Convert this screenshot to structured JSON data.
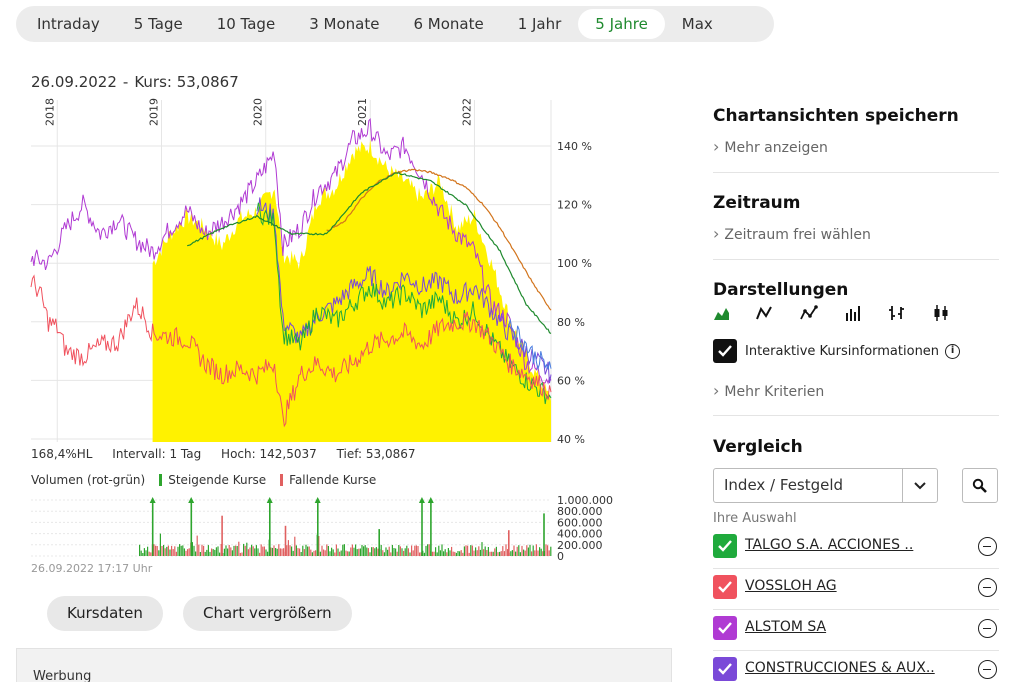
{
  "range_tabs": [
    {
      "label": "Intraday",
      "active": false
    },
    {
      "label": "5 Tage",
      "active": false
    },
    {
      "label": "10 Tage",
      "active": false
    },
    {
      "label": "3 Monate",
      "active": false
    },
    {
      "label": "6 Monate",
      "active": false
    },
    {
      "label": "1 Jahr",
      "active": false
    },
    {
      "label": "5 Jahre",
      "active": true
    },
    {
      "label": "Max",
      "active": false
    }
  ],
  "chart_header": {
    "date": "26.09.2022",
    "separator": "-",
    "price": "Kurs: 53,0867"
  },
  "chart_info": {
    "hl": "168,4%HL",
    "interval": "Intervall: 1 Tag",
    "high": "Hoch: 142,5037",
    "low": "Tief: 53,0867"
  },
  "volume_legend": {
    "title": "Volumen (rot-grün)",
    "up": "Steigende Kurse",
    "down": "Fallende Kurse"
  },
  "timestamp": "26.09.2022 17:17 Uhr",
  "buttons": {
    "kursdaten": "Kursdaten",
    "enlarge": "Chart vergrößern"
  },
  "ad_label": "Werbung",
  "sidebar": {
    "save_views": {
      "title": "Chartansichten speichern",
      "link": "Mehr anzeigen"
    },
    "period": {
      "title": "Zeitraum",
      "link": "Zeitraum frei wählen"
    },
    "display": {
      "title": "Darstellungen",
      "icons": [
        "area-chart-icon",
        "line-chart-icon",
        "dotted-line-chart-icon",
        "bar-chart-icon",
        "ohlc-chart-icon",
        "candlestick-chart-icon"
      ],
      "interactive_label": "Interaktive Kursinformationen",
      "interactive_checked": true,
      "more": "Mehr Kriterien"
    },
    "compare": {
      "title": "Vergleich",
      "select_value": "Index / Festgeld",
      "selection_caption": "Ihre Auswahl",
      "items": [
        {
          "name": "TALGO S.A. ACCIONES ..",
          "color": "#1faa3c"
        },
        {
          "name": "VOSSLOH AG",
          "color": "#f0525e"
        },
        {
          "name": "ALSTOM SA",
          "color": "#b03ad3"
        },
        {
          "name": "CONSTRUCCIONES & AUX..",
          "color": "#7a49d8"
        }
      ]
    }
  },
  "chart_data": {
    "type": "line",
    "x_ticks": [
      "2018",
      "2019",
      "2020",
      "2021",
      "2022"
    ],
    "y_ticks": [
      40,
      60,
      80,
      100,
      120,
      140
    ],
    "y_unit": "%",
    "ylim": [
      40,
      150
    ],
    "fill_color": "#fff200",
    "series": [
      {
        "color": "#fff200",
        "values": [
          {
            "x": "2018-12-01",
            "y": 100
          },
          {
            "x": "2019-02-01",
            "y": 110
          },
          {
            "x": "2019-04-01",
            "y": 116
          },
          {
            "x": "2019-06-01",
            "y": 112
          },
          {
            "x": "2019-08-01",
            "y": 106
          },
          {
            "x": "2019-10-01",
            "y": 115
          },
          {
            "x": "2019-12-01",
            "y": 118
          },
          {
            "x": "2020-02-01",
            "y": 126
          },
          {
            "x": "2020-03-01",
            "y": 103
          },
          {
            "x": "2020-05-01",
            "y": 100
          },
          {
            "x": "2020-07-01",
            "y": 122
          },
          {
            "x": "2020-09-01",
            "y": 126
          },
          {
            "x": "2020-11-01",
            "y": 138
          },
          {
            "x": "2021-01-01",
            "y": 140
          },
          {
            "x": "2021-03-01",
            "y": 132
          },
          {
            "x": "2021-05-01",
            "y": 128
          },
          {
            "x": "2021-07-01",
            "y": 122
          },
          {
            "x": "2021-09-01",
            "y": 128
          },
          {
            "x": "2021-11-01",
            "y": 112
          },
          {
            "x": "2022-01-01",
            "y": 116
          },
          {
            "x": "2022-03-01",
            "y": 100
          },
          {
            "x": "2022-05-01",
            "y": 82
          },
          {
            "x": "2022-07-01",
            "y": 68
          },
          {
            "x": "2022-09-26",
            "y": 53
          }
        ]
      },
      {
        "color": "#b03ad3",
        "values": [
          {
            "x": "2017-10-01",
            "y": 102
          },
          {
            "x": "2017-12-01",
            "y": 100
          },
          {
            "x": "2018-02-01",
            "y": 112
          },
          {
            "x": "2018-04-01",
            "y": 120
          },
          {
            "x": "2018-06-01",
            "y": 110
          },
          {
            "x": "2018-08-01",
            "y": 115
          },
          {
            "x": "2018-10-01",
            "y": 108
          },
          {
            "x": "2018-12-01",
            "y": 104
          },
          {
            "x": "2019-02-01",
            "y": 112
          },
          {
            "x": "2019-04-01",
            "y": 118
          },
          {
            "x": "2019-06-01",
            "y": 110
          },
          {
            "x": "2019-08-01",
            "y": 114
          },
          {
            "x": "2019-10-01",
            "y": 120
          },
          {
            "x": "2019-12-01",
            "y": 128
          },
          {
            "x": "2020-02-01",
            "y": 138
          },
          {
            "x": "2020-03-01",
            "y": 106
          },
          {
            "x": "2020-05-01",
            "y": 112
          },
          {
            "x": "2020-07-01",
            "y": 125
          },
          {
            "x": "2020-09-01",
            "y": 130
          },
          {
            "x": "2020-11-01",
            "y": 142
          },
          {
            "x": "2021-01-01",
            "y": 146
          },
          {
            "x": "2021-03-01",
            "y": 136
          },
          {
            "x": "2021-05-01",
            "y": 140
          },
          {
            "x": "2021-07-01",
            "y": 130
          },
          {
            "x": "2021-09-01",
            "y": 118
          },
          {
            "x": "2021-11-01",
            "y": 110
          },
          {
            "x": "2022-01-01",
            "y": 104
          },
          {
            "x": "2022-03-01",
            "y": 86
          },
          {
            "x": "2022-05-01",
            "y": 80
          },
          {
            "x": "2022-07-01",
            "y": 66
          },
          {
            "x": "2022-09-26",
            "y": 60
          }
        ]
      },
      {
        "color": "#7a49d8",
        "values": [
          {
            "x": "2019-12-01",
            "y": 120
          },
          {
            "x": "2020-02-01",
            "y": 116
          },
          {
            "x": "2020-03-01",
            "y": 80
          },
          {
            "x": "2020-05-01",
            "y": 74
          },
          {
            "x": "2020-07-01",
            "y": 82
          },
          {
            "x": "2020-09-01",
            "y": 86
          },
          {
            "x": "2020-11-01",
            "y": 92
          },
          {
            "x": "2021-01-01",
            "y": 96
          },
          {
            "x": "2021-03-01",
            "y": 90
          },
          {
            "x": "2021-05-01",
            "y": 96
          },
          {
            "x": "2021-07-01",
            "y": 92
          },
          {
            "x": "2021-09-01",
            "y": 94
          },
          {
            "x": "2021-11-01",
            "y": 88
          },
          {
            "x": "2022-01-01",
            "y": 92
          },
          {
            "x": "2022-03-01",
            "y": 84
          },
          {
            "x": "2022-05-01",
            "y": 76
          },
          {
            "x": "2022-07-01",
            "y": 70
          },
          {
            "x": "2022-09-26",
            "y": 62
          }
        ]
      },
      {
        "color": "#1faa3c",
        "values": [
          {
            "x": "2019-12-01",
            "y": 118
          },
          {
            "x": "2020-02-01",
            "y": 114
          },
          {
            "x": "2020-03-01",
            "y": 76
          },
          {
            "x": "2020-05-01",
            "y": 72
          },
          {
            "x": "2020-07-01",
            "y": 84
          },
          {
            "x": "2020-09-01",
            "y": 80
          },
          {
            "x": "2020-11-01",
            "y": 86
          },
          {
            "x": "2021-01-01",
            "y": 92
          },
          {
            "x": "2021-03-01",
            "y": 86
          },
          {
            "x": "2021-05-01",
            "y": 90
          },
          {
            "x": "2021-07-01",
            "y": 84
          },
          {
            "x": "2021-09-01",
            "y": 88
          },
          {
            "x": "2021-11-01",
            "y": 80
          },
          {
            "x": "2022-01-01",
            "y": 84
          },
          {
            "x": "2022-03-01",
            "y": 74
          },
          {
            "x": "2022-05-01",
            "y": 66
          },
          {
            "x": "2022-07-01",
            "y": 60
          },
          {
            "x": "2022-09-26",
            "y": 54
          }
        ]
      },
      {
        "color": "#f0525e",
        "values": [
          {
            "x": "2017-10-01",
            "y": 94
          },
          {
            "x": "2017-11-01",
            "y": 90
          },
          {
            "x": "2017-12-01",
            "y": 80
          },
          {
            "x": "2018-01-01",
            "y": 78
          },
          {
            "x": "2018-02-01",
            "y": 70
          },
          {
            "x": "2018-04-01",
            "y": 68
          },
          {
            "x": "2018-06-01",
            "y": 72
          },
          {
            "x": "2018-08-01",
            "y": 73
          },
          {
            "x": "2018-10-01",
            "y": 86
          },
          {
            "x": "2018-11-01",
            "y": 82
          },
          {
            "x": "2018-12-01",
            "y": 76
          },
          {
            "x": "2019-02-01",
            "y": 75
          },
          {
            "x": "2019-04-01",
            "y": 74
          },
          {
            "x": "2019-06-01",
            "y": 66
          },
          {
            "x": "2019-08-01",
            "y": 62
          },
          {
            "x": "2019-10-01",
            "y": 64
          },
          {
            "x": "2019-12-01",
            "y": 62
          },
          {
            "x": "2020-02-01",
            "y": 66
          },
          {
            "x": "2020-03-01",
            "y": 46
          },
          {
            "x": "2020-05-01",
            "y": 62
          },
          {
            "x": "2020-07-01",
            "y": 66
          },
          {
            "x": "2020-09-01",
            "y": 62
          },
          {
            "x": "2020-11-01",
            "y": 66
          },
          {
            "x": "2021-01-01",
            "y": 72
          },
          {
            "x": "2021-03-01",
            "y": 74
          },
          {
            "x": "2021-05-01",
            "y": 76
          },
          {
            "x": "2021-07-01",
            "y": 72
          },
          {
            "x": "2021-09-01",
            "y": 78
          },
          {
            "x": "2021-11-01",
            "y": 80
          },
          {
            "x": "2022-01-01",
            "y": 80
          },
          {
            "x": "2022-03-01",
            "y": 74
          },
          {
            "x": "2022-05-01",
            "y": 66
          },
          {
            "x": "2022-07-01",
            "y": 62
          },
          {
            "x": "2022-09-26",
            "y": 56
          }
        ]
      },
      {
        "color": "#d2741c",
        "values": [
          {
            "x": "2020-08-01",
            "y": 111
          },
          {
            "x": "2020-10-01",
            "y": 114
          },
          {
            "x": "2020-12-01",
            "y": 122
          },
          {
            "x": "2021-02-01",
            "y": 128
          },
          {
            "x": "2021-04-01",
            "y": 131
          },
          {
            "x": "2021-06-01",
            "y": 132
          },
          {
            "x": "2021-08-01",
            "y": 131
          },
          {
            "x": "2021-10-01",
            "y": 129
          },
          {
            "x": "2021-12-01",
            "y": 126
          },
          {
            "x": "2022-02-01",
            "y": 120
          },
          {
            "x": "2022-04-01",
            "y": 112
          },
          {
            "x": "2022-06-01",
            "y": 102
          },
          {
            "x": "2022-08-01",
            "y": 92
          },
          {
            "x": "2022-09-26",
            "y": 84
          }
        ]
      },
      {
        "color": "#1f8a2e",
        "values": [
          {
            "x": "2019-04-01",
            "y": 106
          },
          {
            "x": "2019-08-01",
            "y": 112
          },
          {
            "x": "2019-12-01",
            "y": 116
          },
          {
            "x": "2020-04-01",
            "y": 110
          },
          {
            "x": "2020-08-01",
            "y": 110
          },
          {
            "x": "2020-12-01",
            "y": 124
          },
          {
            "x": "2021-04-01",
            "y": 131
          },
          {
            "x": "2021-08-01",
            "y": 128
          },
          {
            "x": "2021-12-01",
            "y": 120
          },
          {
            "x": "2022-04-01",
            "y": 104
          },
          {
            "x": "2022-07-01",
            "y": 86
          },
          {
            "x": "2022-09-26",
            "y": 76
          }
        ]
      },
      {
        "color": "#4a7de0",
        "values": [
          {
            "x": "2022-05-01",
            "y": 80
          },
          {
            "x": "2022-06-01",
            "y": 76
          },
          {
            "x": "2022-07-01",
            "y": 72
          },
          {
            "x": "2022-08-01",
            "y": 68
          },
          {
            "x": "2022-09-26",
            "y": 64
          }
        ]
      }
    ]
  },
  "volume_data": {
    "type": "bar",
    "y_ticks": [
      "1.000.000",
      "800.000",
      "600.000",
      "400.000",
      "200.000",
      "0"
    ],
    "y_values": [
      1000000,
      800000,
      600000,
      400000,
      200000,
      0
    ],
    "ylim": [
      0,
      1000000
    ],
    "up_color": "#2ea52e",
    "down_color": "#e06060",
    "peaks": [
      {
        "x": "2018-12-01",
        "v": 1000000,
        "dir": "up"
      },
      {
        "x": "2019-04-15",
        "v": 1000000,
        "dir": "up"
      },
      {
        "x": "2020-01-15",
        "v": 1000000,
        "dir": "up"
      },
      {
        "x": "2020-07-01",
        "v": 1000000,
        "dir": "up"
      },
      {
        "x": "2021-07-01",
        "v": 1000000,
        "dir": "up"
      },
      {
        "x": "2021-08-01",
        "v": 1000000,
        "dir": "up"
      },
      {
        "x": "2019-08-01",
        "v": 720000,
        "dir": "down"
      },
      {
        "x": "2020-03-10",
        "v": 540000,
        "dir": "down"
      },
      {
        "x": "2021-02-01",
        "v": 480000,
        "dir": "up"
      },
      {
        "x": "2022-05-01",
        "v": 460000,
        "dir": "down"
      },
      {
        "x": "2022-09-01",
        "v": 760000,
        "dir": "up"
      }
    ]
  }
}
